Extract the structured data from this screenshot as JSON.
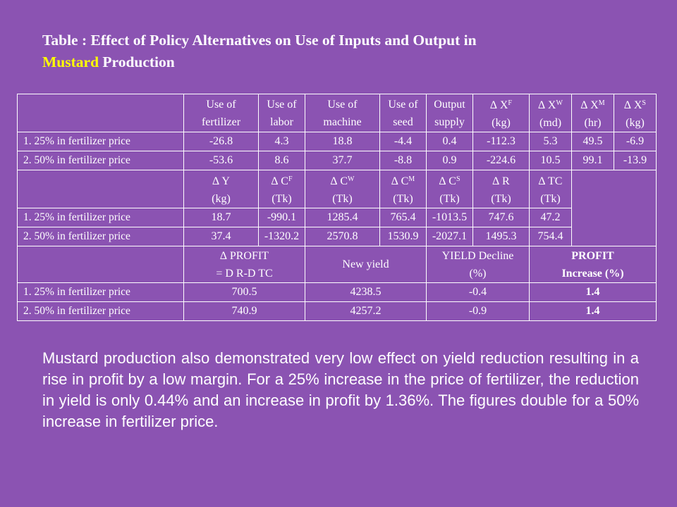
{
  "title": {
    "prefix": "Table : Effect of Policy Alternatives on Use of Inputs and Output in",
    "highlight": "Mustard",
    "suffix": " Production"
  },
  "section1": {
    "headers": [
      {
        "line1": "Use of",
        "line2": "fertilizer"
      },
      {
        "line1": "Use of",
        "line2": "labor"
      },
      {
        "line1": "Use of",
        "line2": "machine"
      },
      {
        "line1": "Use of",
        "line2": "seed"
      },
      {
        "line1": "Output",
        "line2": "supply"
      },
      {
        "sym": "∆ X",
        "sup": "F",
        "unit": "(kg)"
      },
      {
        "sym": "∆ X",
        "sup": "W",
        "unit": "(md)"
      },
      {
        "sym": "∆ X",
        "sup": "M",
        "unit": "(hr)"
      },
      {
        "sym": "∆ X",
        "sup": "S",
        "unit": "(kg)"
      }
    ],
    "rows": [
      {
        "label": "1. 25%  in fertilizer price",
        "values": [
          "-26.8",
          "4.3",
          "18.8",
          "-4.4",
          "0.4",
          "-112.3",
          "5.3",
          "49.5",
          "-6.9"
        ]
      },
      {
        "label": "2. 50%  in fertilizer price",
        "values": [
          "-53.6",
          "8.6",
          "37.7",
          "-8.8",
          "0.9",
          "-224.6",
          "10.5",
          "99.1",
          "-13.9"
        ]
      }
    ]
  },
  "section2": {
    "headers": [
      {
        "sym": "∆ Y",
        "sup": "",
        "unit": "(kg)"
      },
      {
        "sym": "∆ C",
        "sup": "F",
        "unit": "(Tk)"
      },
      {
        "sym": "∆ C",
        "sup": "W",
        "unit": "(Tk)"
      },
      {
        "sym": "∆ C",
        "sup": "M",
        "unit": "(Tk)"
      },
      {
        "sym": "∆ C",
        "sup": "S",
        "unit": "(Tk)"
      },
      {
        "sym": "∆ R",
        "sup": "",
        "unit": "(Tk)"
      },
      {
        "sym": "∆ TC",
        "sup": "",
        "unit": "(Tk)"
      }
    ],
    "rows": [
      {
        "label": "1. 25%  in fertilizer price",
        "values": [
          "18.7",
          "-990.1",
          "1285.4",
          "765.4",
          "-1013.5",
          "747.6",
          "47.2"
        ]
      },
      {
        "label": "2. 50%  in fertilizer price",
        "values": [
          "37.4",
          "-1320.2",
          "2570.8",
          "1530.9",
          "-2027.1",
          "1495.3",
          "754.4"
        ]
      }
    ]
  },
  "section3": {
    "headers": [
      {
        "line1": "∆ PROFIT",
        "line2": "= D R-D TC"
      },
      {
        "line1": "New yield",
        "line2": ""
      },
      {
        "line1": "YIELD Decline",
        "line2": "(%)"
      },
      {
        "line1": "PROFIT",
        "line2": "Increase (%)"
      }
    ],
    "rows": [
      {
        "label": "1. 25%  in fertilizer price",
        "values": [
          "700.5",
          "4238.5",
          "-0.4",
          "1.4"
        ]
      },
      {
        "label": "2. 50%  in fertilizer price",
        "values": [
          "740.9",
          "4257.2",
          "-0.9",
          "1.4"
        ]
      }
    ]
  },
  "paragraph": "Mustard production also demonstrated very low effect on yield reduction resulting in a rise in profit by a low margin. For a 25% increase in the price of fertilizer, the reduction in yield is only 0.44% and an increase in profit by 1.36%. The figures double for a 50% increase in fertilizer price."
}
